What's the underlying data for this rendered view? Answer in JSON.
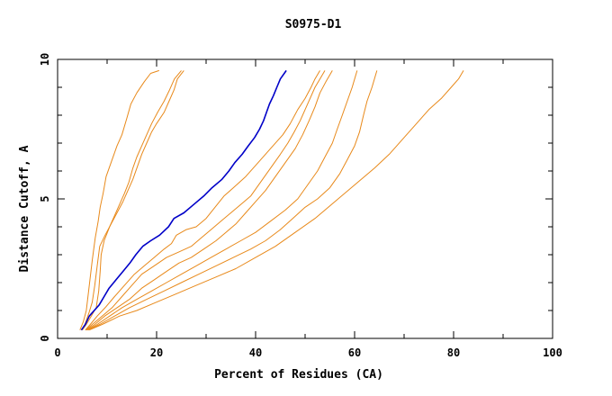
{
  "chart_data": {
    "type": "line",
    "title": "S0975-D1",
    "xlabel": "Percent of Residues (CA)",
    "ylabel": "Distance Cutoff, A",
    "xlim": [
      0,
      100
    ],
    "ylim": [
      0,
      10
    ],
    "xticks": [
      0,
      20,
      40,
      60,
      80,
      100
    ],
    "yticks": [
      0,
      5,
      10
    ],
    "xtick_labels": [
      "0",
      "20",
      "40",
      "60",
      "80",
      "100"
    ],
    "ytick_labels": [
      "0",
      "5",
      "10"
    ],
    "colors": {
      "highlight": "#0000c8",
      "others": "#e8891a",
      "axes": "#000000"
    },
    "series": [
      {
        "name": "orange-1",
        "highlight": false,
        "points": [
          [
            4.5,
            0.3
          ],
          [
            5.2,
            0.6
          ],
          [
            5.8,
            1.0
          ],
          [
            6.2,
            1.6
          ],
          [
            6.6,
            2.2
          ],
          [
            7.0,
            2.8
          ],
          [
            7.6,
            3.6
          ],
          [
            8.2,
            4.2
          ],
          [
            8.6,
            4.7
          ],
          [
            9.2,
            5.2
          ],
          [
            9.8,
            5.8
          ],
          [
            10.8,
            6.3
          ],
          [
            12.0,
            6.9
          ],
          [
            13.0,
            7.3
          ],
          [
            14.0,
            7.9
          ],
          [
            14.8,
            8.4
          ],
          [
            16.0,
            8.8
          ],
          [
            17.5,
            9.2
          ],
          [
            18.8,
            9.5
          ],
          [
            20.5,
            9.6
          ]
        ]
      },
      {
        "name": "orange-2",
        "highlight": false,
        "points": [
          [
            4.8,
            0.3
          ],
          [
            5.5,
            0.5
          ],
          [
            6.3,
            0.9
          ],
          [
            7.0,
            1.3
          ],
          [
            7.5,
            1.9
          ],
          [
            8.0,
            2.6
          ],
          [
            8.5,
            3.3
          ],
          [
            9.6,
            3.7
          ],
          [
            10.8,
            4.1
          ],
          [
            12.0,
            4.5
          ],
          [
            13.2,
            4.9
          ],
          [
            14.2,
            5.3
          ],
          [
            15.2,
            5.7
          ],
          [
            16.2,
            6.2
          ],
          [
            17.0,
            6.6
          ],
          [
            18.0,
            7.0
          ],
          [
            19.0,
            7.4
          ],
          [
            20.0,
            7.7
          ],
          [
            21.5,
            8.1
          ],
          [
            22.5,
            8.5
          ],
          [
            23.5,
            8.9
          ],
          [
            24.2,
            9.3
          ],
          [
            25.5,
            9.6
          ]
        ]
      },
      {
        "name": "orange-3",
        "highlight": false,
        "points": [
          [
            5.0,
            0.3
          ],
          [
            5.8,
            0.5
          ],
          [
            6.8,
            0.8
          ],
          [
            7.8,
            1.1
          ],
          [
            8.3,
            1.7
          ],
          [
            8.6,
            2.4
          ],
          [
            8.8,
            3.0
          ],
          [
            9.4,
            3.5
          ],
          [
            10.5,
            4.0
          ],
          [
            11.5,
            4.4
          ],
          [
            12.5,
            4.8
          ],
          [
            13.5,
            5.2
          ],
          [
            14.4,
            5.6
          ],
          [
            15.2,
            6.1
          ],
          [
            16.0,
            6.5
          ],
          [
            17.0,
            6.9
          ],
          [
            18.0,
            7.3
          ],
          [
            19.0,
            7.7
          ],
          [
            20.2,
            8.1
          ],
          [
            21.5,
            8.5
          ],
          [
            22.6,
            8.9
          ],
          [
            23.6,
            9.3
          ],
          [
            25.0,
            9.6
          ]
        ]
      },
      {
        "name": "blue-highlight",
        "highlight": true,
        "points": [
          [
            4.8,
            0.3
          ],
          [
            5.6,
            0.5
          ],
          [
            6.4,
            0.8
          ],
          [
            7.4,
            1.0
          ],
          [
            8.4,
            1.2
          ],
          [
            9.4,
            1.5
          ],
          [
            10.4,
            1.8
          ],
          [
            11.8,
            2.1
          ],
          [
            13.2,
            2.4
          ],
          [
            14.6,
            2.7
          ],
          [
            15.8,
            3.0
          ],
          [
            17.2,
            3.3
          ],
          [
            18.8,
            3.5
          ],
          [
            20.6,
            3.7
          ],
          [
            22.4,
            4.0
          ],
          [
            23.5,
            4.3
          ],
          [
            25.5,
            4.5
          ],
          [
            27.5,
            4.8
          ],
          [
            29.5,
            5.1
          ],
          [
            31.2,
            5.4
          ],
          [
            33.2,
            5.7
          ],
          [
            34.6,
            6.0
          ],
          [
            35.8,
            6.3
          ],
          [
            37.3,
            6.6
          ],
          [
            38.5,
            6.9
          ],
          [
            39.8,
            7.2
          ],
          [
            40.8,
            7.5
          ],
          [
            41.6,
            7.8
          ],
          [
            42.2,
            8.1
          ],
          [
            42.8,
            8.4
          ],
          [
            43.6,
            8.7
          ],
          [
            44.3,
            9.0
          ],
          [
            45.0,
            9.3
          ],
          [
            46.2,
            9.6
          ]
        ]
      },
      {
        "name": "orange-4",
        "highlight": false,
        "points": [
          [
            5.6,
            0.3
          ],
          [
            6.6,
            0.5
          ],
          [
            8.0,
            0.8
          ],
          [
            9.6,
            1.1
          ],
          [
            11.5,
            1.5
          ],
          [
            13.5,
            1.9
          ],
          [
            15.5,
            2.3
          ],
          [
            17.5,
            2.6
          ],
          [
            19.5,
            2.9
          ],
          [
            21.5,
            3.2
          ],
          [
            23.0,
            3.4
          ],
          [
            24.0,
            3.7
          ],
          [
            26.0,
            3.9
          ],
          [
            28.0,
            4.0
          ],
          [
            30.0,
            4.3
          ],
          [
            31.8,
            4.7
          ],
          [
            33.6,
            5.1
          ],
          [
            35.5,
            5.4
          ],
          [
            38.0,
            5.8
          ],
          [
            40.5,
            6.3
          ],
          [
            43.0,
            6.8
          ],
          [
            45.5,
            7.3
          ],
          [
            47.0,
            7.7
          ],
          [
            48.5,
            8.2
          ],
          [
            50.0,
            8.6
          ],
          [
            51.2,
            9.0
          ],
          [
            52.0,
            9.3
          ],
          [
            53.0,
            9.6
          ]
        ]
      },
      {
        "name": "orange-5",
        "highlight": false,
        "points": [
          [
            5.7,
            0.3
          ],
          [
            7.0,
            0.5
          ],
          [
            9.0,
            0.8
          ],
          [
            11.0,
            1.1
          ],
          [
            13.0,
            1.5
          ],
          [
            15.0,
            1.9
          ],
          [
            17.0,
            2.3
          ],
          [
            19.5,
            2.6
          ],
          [
            22.0,
            2.9
          ],
          [
            24.5,
            3.1
          ],
          [
            27.0,
            3.3
          ],
          [
            29.0,
            3.6
          ],
          [
            31.0,
            3.9
          ],
          [
            33.0,
            4.2
          ],
          [
            35.0,
            4.5
          ],
          [
            37.0,
            4.8
          ],
          [
            39.0,
            5.1
          ],
          [
            41.0,
            5.6
          ],
          [
            43.0,
            6.1
          ],
          [
            45.0,
            6.6
          ],
          [
            46.5,
            7.0
          ],
          [
            47.8,
            7.4
          ],
          [
            49.0,
            7.8
          ],
          [
            50.0,
            8.2
          ],
          [
            51.0,
            8.6
          ],
          [
            52.0,
            9.0
          ],
          [
            53.0,
            9.3
          ],
          [
            54.0,
            9.6
          ]
        ]
      },
      {
        "name": "orange-6",
        "highlight": false,
        "points": [
          [
            5.8,
            0.3
          ],
          [
            7.5,
            0.5
          ],
          [
            9.5,
            0.8
          ],
          [
            12.0,
            1.1
          ],
          [
            14.5,
            1.4
          ],
          [
            17.0,
            1.8
          ],
          [
            19.5,
            2.1
          ],
          [
            22.0,
            2.4
          ],
          [
            24.5,
            2.7
          ],
          [
            27.0,
            2.9
          ],
          [
            29.5,
            3.2
          ],
          [
            32.0,
            3.5
          ],
          [
            34.0,
            3.8
          ],
          [
            36.0,
            4.1
          ],
          [
            38.0,
            4.5
          ],
          [
            40.0,
            4.9
          ],
          [
            42.0,
            5.3
          ],
          [
            44.0,
            5.8
          ],
          [
            46.0,
            6.3
          ],
          [
            48.0,
            6.8
          ],
          [
            49.5,
            7.3
          ],
          [
            50.8,
            7.8
          ],
          [
            52.0,
            8.3
          ],
          [
            53.0,
            8.8
          ],
          [
            54.2,
            9.2
          ],
          [
            55.5,
            9.6
          ]
        ]
      },
      {
        "name": "orange-7",
        "highlight": false,
        "points": [
          [
            6.0,
            0.3
          ],
          [
            8.0,
            0.5
          ],
          [
            10.5,
            0.8
          ],
          [
            13.0,
            1.1
          ],
          [
            16.0,
            1.4
          ],
          [
            19.0,
            1.7
          ],
          [
            22.0,
            2.0
          ],
          [
            25.0,
            2.3
          ],
          [
            28.0,
            2.6
          ],
          [
            31.0,
            2.9
          ],
          [
            34.0,
            3.2
          ],
          [
            37.0,
            3.5
          ],
          [
            40.0,
            3.8
          ],
          [
            43.0,
            4.2
          ],
          [
            46.0,
            4.6
          ],
          [
            48.5,
            5.0
          ],
          [
            50.5,
            5.5
          ],
          [
            52.5,
            6.0
          ],
          [
            54.0,
            6.5
          ],
          [
            55.5,
            7.0
          ],
          [
            56.5,
            7.5
          ],
          [
            57.5,
            8.0
          ],
          [
            58.5,
            8.5
          ],
          [
            59.5,
            9.0
          ],
          [
            60.5,
            9.6
          ]
        ]
      },
      {
        "name": "orange-8",
        "highlight": false,
        "points": [
          [
            6.2,
            0.3
          ],
          [
            8.5,
            0.5
          ],
          [
            11.5,
            0.8
          ],
          [
            14.5,
            1.1
          ],
          [
            18.0,
            1.4
          ],
          [
            21.5,
            1.7
          ],
          [
            25.0,
            2.0
          ],
          [
            28.5,
            2.3
          ],
          [
            32.0,
            2.6
          ],
          [
            35.5,
            2.9
          ],
          [
            39.0,
            3.2
          ],
          [
            42.0,
            3.5
          ],
          [
            45.0,
            3.9
          ],
          [
            47.5,
            4.3
          ],
          [
            50.0,
            4.7
          ],
          [
            52.5,
            5.0
          ],
          [
            55.0,
            5.4
          ],
          [
            57.0,
            5.9
          ],
          [
            58.5,
            6.4
          ],
          [
            60.0,
            6.9
          ],
          [
            61.0,
            7.4
          ],
          [
            61.8,
            8.0
          ],
          [
            62.5,
            8.5
          ],
          [
            63.5,
            9.0
          ],
          [
            64.5,
            9.6
          ]
        ]
      },
      {
        "name": "orange-9",
        "highlight": false,
        "points": [
          [
            6.4,
            0.3
          ],
          [
            9.0,
            0.5
          ],
          [
            12.5,
            0.8
          ],
          [
            16.0,
            1.0
          ],
          [
            20.0,
            1.3
          ],
          [
            24.0,
            1.6
          ],
          [
            28.0,
            1.9
          ],
          [
            32.0,
            2.2
          ],
          [
            36.0,
            2.5
          ],
          [
            40.0,
            2.9
          ],
          [
            44.0,
            3.3
          ],
          [
            48.0,
            3.8
          ],
          [
            52.0,
            4.3
          ],
          [
            56.0,
            4.9
          ],
          [
            60.0,
            5.5
          ],
          [
            64.0,
            6.1
          ],
          [
            67.0,
            6.6
          ],
          [
            70.0,
            7.2
          ],
          [
            72.5,
            7.7
          ],
          [
            75.0,
            8.2
          ],
          [
            77.5,
            8.6
          ],
          [
            79.5,
            9.0
          ],
          [
            81.0,
            9.3
          ],
          [
            82.0,
            9.6
          ]
        ]
      }
    ]
  }
}
